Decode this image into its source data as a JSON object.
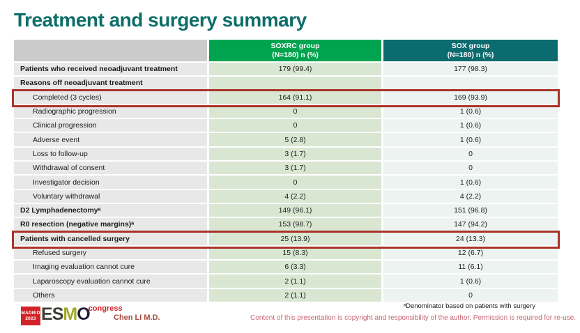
{
  "title": "Treatment and surgery summary",
  "table": {
    "col1_header": {
      "line1": "SOXRC group",
      "line2": "(N=180)  n (%)"
    },
    "col2_header": {
      "line1": "SOX group",
      "line2": "(N=180)  n (%)"
    },
    "rows": [
      {
        "label": "Patients who received neoadjuvant treatment",
        "soxrc": "179 (99.4)",
        "sox": "177 (98.3)",
        "bold": true,
        "indent": false,
        "highlight": false
      },
      {
        "label": "Reasons off neoadjuvant treatment",
        "soxrc": "",
        "sox": "",
        "bold": true,
        "indent": false,
        "highlight": false
      },
      {
        "label": "Completed (3 cycles)",
        "soxrc": "164 (91.1)",
        "sox": "169 (93.9)",
        "bold": false,
        "indent": true,
        "highlight": true
      },
      {
        "label": "Radiographic progression",
        "soxrc": "0",
        "sox": "1 (0.6)",
        "bold": false,
        "indent": true,
        "highlight": false
      },
      {
        "label": "Clinical progression",
        "soxrc": "0",
        "sox": "1 (0.6)",
        "bold": false,
        "indent": true,
        "highlight": false
      },
      {
        "label": "Adverse event",
        "soxrc": "5 (2.8)",
        "sox": "1 (0.6)",
        "bold": false,
        "indent": true,
        "highlight": false
      },
      {
        "label": "Loss to follow-up",
        "soxrc": "3 (1.7)",
        "sox": "0",
        "bold": false,
        "indent": true,
        "highlight": false
      },
      {
        "label": "Withdrawal of consent",
        "soxrc": "3 (1.7)",
        "sox": "0",
        "bold": false,
        "indent": true,
        "highlight": false
      },
      {
        "label": "Investigator decision",
        "soxrc": "0",
        "sox": "1 (0.6)",
        "bold": false,
        "indent": true,
        "highlight": false
      },
      {
        "label": "Voluntary withdrawal",
        "soxrc": "4 (2.2)",
        "sox": "4 (2.2)",
        "bold": false,
        "indent": true,
        "highlight": false
      },
      {
        "label": "D2 Lymphadenectomyᵃ",
        "soxrc": "149 (96.1)",
        "sox": "151 (96.8)",
        "bold": true,
        "indent": false,
        "highlight": false
      },
      {
        "label": "R0 resection (negative margins)ᵃ",
        "soxrc": "153 (98.7)",
        "sox": "147 (94.2)",
        "bold": true,
        "indent": false,
        "highlight": false
      },
      {
        "label": "Patients with cancelled surgery",
        "soxrc": "25 (13.9)",
        "sox": "24 (13.3)",
        "bold": true,
        "indent": false,
        "highlight": true
      },
      {
        "label": "Refused surgery",
        "soxrc": "15 (8.3)",
        "sox": "12 (6.7)",
        "bold": false,
        "indent": true,
        "highlight": false
      },
      {
        "label": "Imaging evaluation cannot cure",
        "soxrc": "6 (3.3)",
        "sox": "11 (6.1)",
        "bold": false,
        "indent": true,
        "highlight": false
      },
      {
        "label": "Laparoscopy evaluation cannot cure",
        "soxrc": "2 (1.1)",
        "sox": "1 (0.6)",
        "bold": false,
        "indent": true,
        "highlight": false
      },
      {
        "label": "Others",
        "soxrc": "2 (1.1)",
        "sox": "0",
        "bold": false,
        "indent": true,
        "highlight": false
      }
    ]
  },
  "footer": {
    "footnote": "ᵃDenominator based on patients with surgery",
    "copyright": "Content of this presentation is copyright and responsibility of the author. Permission is required for re-use.",
    "presenter": "Chen LI M.D.",
    "logo": {
      "badge_line1": "MADRID",
      "badge_line2": "2023",
      "e": "E",
      "s": "S",
      "m": "M",
      "o": "O",
      "congress": "congress"
    }
  },
  "colors": {
    "title": "#0e6e68",
    "green-header": "#00a44f",
    "teal-header": "#0c6b6e",
    "highlight-red": "#a93328",
    "esmo-red": "#d2232a",
    "presenter": "#a5483d",
    "copyright-pink": "#c56673"
  }
}
